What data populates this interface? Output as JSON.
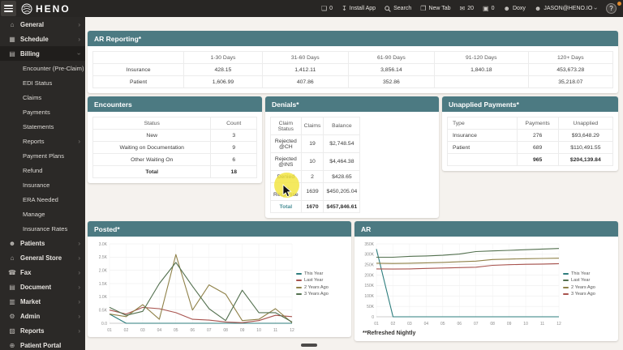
{
  "topbar": {
    "brand": "HENO",
    "chat_count": "0",
    "install_label": "Install App",
    "search_label": "Search",
    "newtab_label": "New Tab",
    "mail_count": "20",
    "bag_count": "0",
    "doxy_label": "Doxy",
    "user_email": "JASON@HENO.IO",
    "help_label": "?"
  },
  "sidebar": {
    "top": [
      {
        "label": "General"
      },
      {
        "label": "Schedule"
      },
      {
        "label": "Billing"
      }
    ],
    "billing_sub": [
      {
        "label": "Encounter (Pre-Claim)"
      },
      {
        "label": "EDI Status"
      },
      {
        "label": "Claims"
      },
      {
        "label": "Payments"
      },
      {
        "label": "Statements"
      },
      {
        "label": "Reports"
      },
      {
        "label": "Payment Plans"
      },
      {
        "label": "Refund"
      },
      {
        "label": "Insurance"
      },
      {
        "label": "ERA Needed"
      },
      {
        "label": "Manage"
      },
      {
        "label": "Insurance Rates"
      }
    ],
    "bottom": [
      {
        "label": "Patients"
      },
      {
        "label": "General Store"
      },
      {
        "label": "Fax"
      },
      {
        "label": "Document"
      },
      {
        "label": "Market"
      },
      {
        "label": "Admin"
      },
      {
        "label": "Reports"
      },
      {
        "label": "Patient Portal"
      }
    ]
  },
  "panels": {
    "ar_reporting": {
      "title": "AR Reporting*",
      "columns": [
        "",
        "1-30 Days",
        "31-60 Days",
        "61-90 Days",
        "91-120 Days",
        "120+ Days"
      ],
      "rows": [
        {
          "label": "Insurance",
          "values": [
            "428.15",
            "1,412.11",
            "3,856.14",
            "1,840.18",
            "453,673.28"
          ]
        },
        {
          "label": "Patient",
          "values": [
            "1,606.99",
            "407.86",
            "352.86",
            "",
            "35,218.07"
          ]
        }
      ]
    },
    "encounters": {
      "title": "Encounters",
      "columns": [
        "Status",
        "Count"
      ],
      "rows": [
        {
          "label": "New",
          "count": "3"
        },
        {
          "label": "Waiting on Documentation",
          "count": "9"
        },
        {
          "label": "Other Waiting On",
          "count": "6"
        }
      ],
      "total": {
        "label": "Total",
        "count": "18"
      }
    },
    "denials": {
      "title": "Denials*",
      "columns": [
        "Claim Status",
        "Claims",
        "Balance"
      ],
      "rows": [
        {
          "label": "Rejected @CH",
          "claims": "19",
          "balance": "$2,748.54"
        },
        {
          "label": "Rejected @INS",
          "claims": "10",
          "balance": "$4,464.38"
        },
        {
          "label": "Denied",
          "claims": "2",
          "balance": "$428.65"
        },
        {
          "label": "No Response",
          "claims": "1639",
          "balance": "$450,205.04"
        }
      ],
      "total": {
        "label": "Total",
        "claims": "1670",
        "balance": "$457,846.61"
      }
    },
    "unapplied": {
      "title": "Unapplied Payments*",
      "columns": [
        "Type",
        "Payments",
        "Unapplied"
      ],
      "rows": [
        {
          "label": "Insurance",
          "payments": "276",
          "unapplied": "$93,648.29"
        },
        {
          "label": "Patient",
          "payments": "689",
          "unapplied": "$110,491.55"
        }
      ],
      "total": {
        "label": "",
        "payments": "965",
        "unapplied": "$204,139.84"
      }
    }
  },
  "chart_data": [
    {
      "type": "line",
      "title": "Posted*",
      "x": [
        "01",
        "02",
        "03",
        "04",
        "05",
        "06",
        "07",
        "08",
        "09",
        "10",
        "11",
        "12"
      ],
      "yticks": [
        "0.0",
        "0.5K",
        "1.0K",
        "1.5K",
        "2.0K",
        "2.5K",
        "3.0K"
      ],
      "ylim": [
        0,
        3000
      ],
      "grid": true,
      "legend_position": "right",
      "series": [
        {
          "name": "This Year",
          "color": "#2d7d7d",
          "values": [
            350,
            0,
            0,
            0,
            0,
            0,
            0,
            0,
            0,
            0,
            0,
            0
          ]
        },
        {
          "name": "Last Year",
          "color": "#a8534e",
          "values": [
            500,
            350,
            600,
            550,
            400,
            150,
            120,
            50,
            20,
            100,
            300,
            250
          ]
        },
        {
          "name": "2 Years Ago",
          "color": "#8f8148",
          "values": [
            350,
            250,
            700,
            150,
            2600,
            500,
            1450,
            1100,
            100,
            150,
            550,
            20
          ]
        },
        {
          "name": "3 Years Ago",
          "color": "#53704f",
          "values": [
            600,
            300,
            450,
            1500,
            2300,
            1400,
            550,
            100,
            1250,
            400,
            400,
            50
          ]
        }
      ]
    },
    {
      "type": "line",
      "title": "AR",
      "x": [
        "01",
        "02",
        "03",
        "04",
        "05",
        "06",
        "07",
        "08",
        "09",
        "10",
        "11",
        "12"
      ],
      "yticks": [
        "0",
        "50K",
        "100K",
        "150K",
        "200K",
        "250K",
        "300K",
        "350K"
      ],
      "ylim": [
        0,
        350000
      ],
      "grid": true,
      "legend_position": "right",
      "footnote": "**Refreshed Nightly",
      "series": [
        {
          "name": "This Year",
          "color": "#2d7d7d",
          "values": [
            325000,
            0,
            0,
            0,
            0,
            0,
            0,
            0,
            0,
            0,
            0,
            0
          ]
        },
        {
          "name": "Last Year",
          "color": "#53704f",
          "values": [
            286000,
            286000,
            290000,
            292000,
            295000,
            301000,
            313000,
            316000,
            319000,
            322000,
            325000,
            328000
          ]
        },
        {
          "name": "2 Years Ago",
          "color": "#8f8148",
          "values": [
            257000,
            256000,
            257000,
            259000,
            261000,
            264000,
            267000,
            275000,
            277000,
            279000,
            280000,
            281000
          ]
        },
        {
          "name": "3 Years Ago",
          "color": "#a8534e",
          "values": [
            230000,
            229000,
            230000,
            232000,
            234000,
            236000,
            238000,
            247000,
            250000,
            252000,
            253000,
            255000
          ]
        }
      ]
    }
  ]
}
